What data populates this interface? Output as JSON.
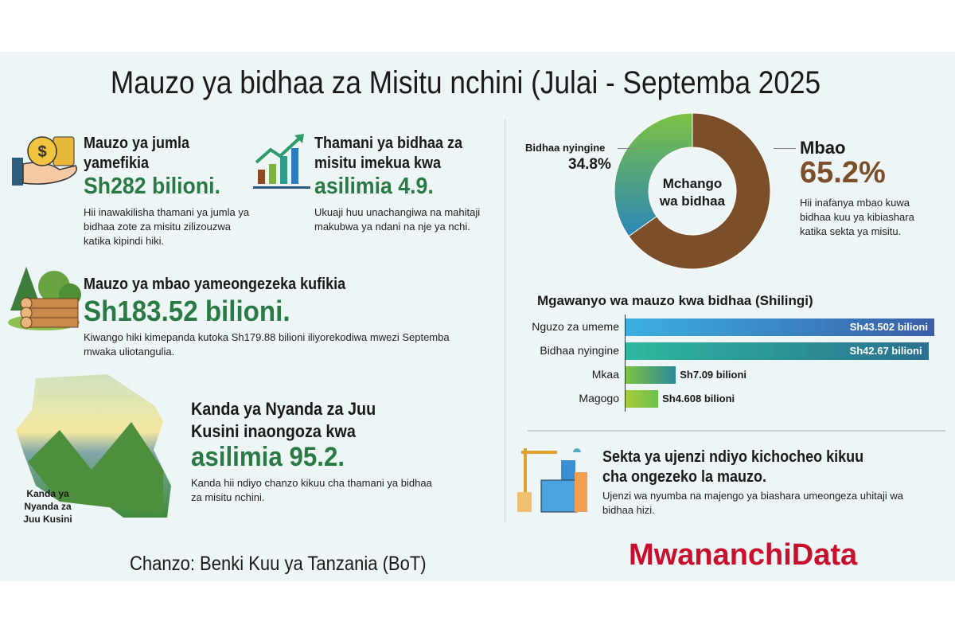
{
  "title": "Mauzo ya bidhaa za Misitu nchini (Julai - Septemba 2025",
  "total": {
    "heading1": "Mauzo ya jumla",
    "heading2": "yamefikia",
    "value": "Sh282 bilioni.",
    "desc": "Hii inawakilisha thamani ya jumla ya bidhaa zote za misitu zilizouzwa katika kipindi hiki."
  },
  "growth": {
    "heading1": "Thamani ya bidhaa za",
    "heading2": "misitu imekua kwa",
    "value": "asilimia 4.9.",
    "desc": "Ukuaji huu unachangiwa na mahitaji makubwa ya ndani na nje ya nchi."
  },
  "timber": {
    "heading": "Mauzo ya mbao yameongezeka kufikia",
    "value": "Sh183.52 bilioni.",
    "desc": "Kiwango hiki kimepanda kutoka Sh179.88 bilioni iliyorekodiwa mwezi Septemba mwaka uliotangulia."
  },
  "region": {
    "map_label": "Kanda ya Nyanda za Juu Kusini",
    "heading1": "Kanda ya Nyanda za Juu",
    "heading2": "Kusini inaongoza kwa",
    "value": "asilimia 95.2.",
    "desc": "Kanda hii ndiyo chanzo kikuu cha thamani ya bidhaa za misitu nchini."
  },
  "construction": {
    "heading1": "Sekta ya ujenzi ndiyo kichocheo kikuu",
    "heading2": "cha ongezeko la mauzo.",
    "desc": "Ujenzi wa nyumba na majengo ya biashara umeongeza uhitaji wa bidhaa hizi."
  },
  "donut_note": "Hii inafanya mbao kuwa bidhaa kuu ya kibiashara katika sekta ya misitu.",
  "source": "Chanzo: Benki Kuu ya Tanzania (BoT)",
  "brand": "MwananchiData",
  "colors": {
    "brand": "#c8102e",
    "green": "#2a7a46",
    "brown": "#7a4f2a"
  },
  "chart_data": [
    {
      "type": "pie",
      "title": "Mchango wa bidhaa",
      "labels": [
        "Mbao",
        "Bidhaa nyingine"
      ],
      "values": [
        65.2,
        34.8
      ],
      "value_labels": [
        "65.2%",
        "34.8%"
      ],
      "colors": [
        "#7a4f2a",
        "#3aa58a"
      ]
    },
    {
      "type": "bar",
      "orientation": "horizontal",
      "title": "Mgawanyo wa mauzo kwa bidhaa (Shilingi)",
      "categories": [
        "Nguzo za umeme",
        "Bidhaa nyingine",
        "Mkaa",
        "Magogo"
      ],
      "values": [
        43.502,
        42.67,
        7.09,
        4.608
      ],
      "value_labels": [
        "Sh43.502 bilioni",
        "Sh42.67 bilioni",
        "Sh7.09 bilioni",
        "Sh4.608 bilioni"
      ],
      "unit": "bilioni Sh"
    }
  ]
}
